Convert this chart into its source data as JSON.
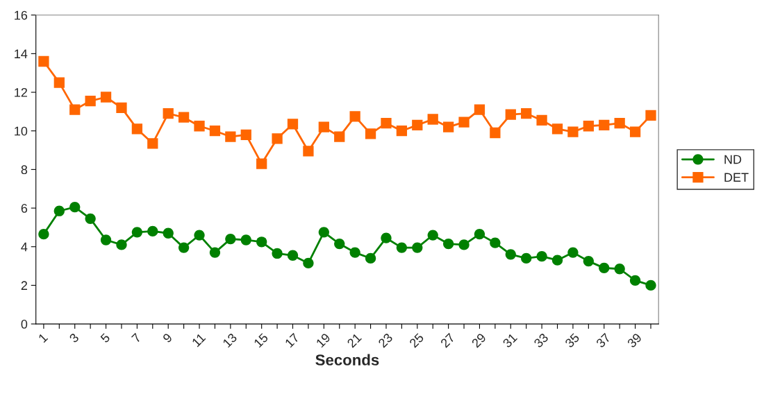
{
  "chart_data": {
    "type": "line",
    "xlabel": "Seconds",
    "categories": [
      "1",
      null,
      "3",
      null,
      "5",
      null,
      "7",
      null,
      "9",
      null,
      "11",
      null,
      "13",
      null,
      "15",
      null,
      "17",
      null,
      "19",
      null,
      "21",
      null,
      "23",
      null,
      "25",
      null,
      "27",
      null,
      "29",
      null,
      "31",
      null,
      "33",
      null,
      "35",
      null,
      "37",
      null,
      "39",
      null
    ],
    "series": [
      {
        "name": "ND",
        "color": "#008000",
        "marker": "circle",
        "values": [
          4.65,
          5.85,
          6.05,
          5.45,
          4.35,
          4.1,
          4.75,
          4.8,
          4.7,
          3.95,
          4.6,
          3.7,
          4.4,
          4.35,
          4.25,
          3.65,
          3.55,
          3.15,
          4.75,
          4.15,
          3.7,
          3.4,
          4.45,
          3.95,
          3.95,
          4.6,
          4.15,
          4.1,
          4.65,
          4.2,
          3.6,
          3.4,
          3.5,
          3.3,
          3.7,
          3.25,
          2.9,
          2.85,
          2.25,
          2.0
        ]
      },
      {
        "name": "DET",
        "color": "#ff6600",
        "marker": "square",
        "values": [
          13.6,
          12.5,
          11.1,
          11.55,
          11.75,
          11.2,
          10.1,
          9.35,
          10.9,
          10.7,
          10.25,
          10.0,
          9.7,
          9.8,
          8.3,
          9.6,
          10.35,
          8.95,
          10.2,
          9.7,
          10.75,
          9.85,
          10.4,
          10.0,
          10.3,
          10.6,
          10.2,
          10.45,
          11.1,
          9.9,
          10.85,
          10.9,
          10.55,
          10.1,
          9.95,
          10.25,
          10.3,
          10.4,
          9.95,
          10.8
        ]
      }
    ],
    "ylim": [
      0,
      16
    ],
    "yticks": [
      0,
      2,
      4,
      6,
      8,
      10,
      12,
      14,
      16
    ],
    "grid": false,
    "legend": "right"
  }
}
